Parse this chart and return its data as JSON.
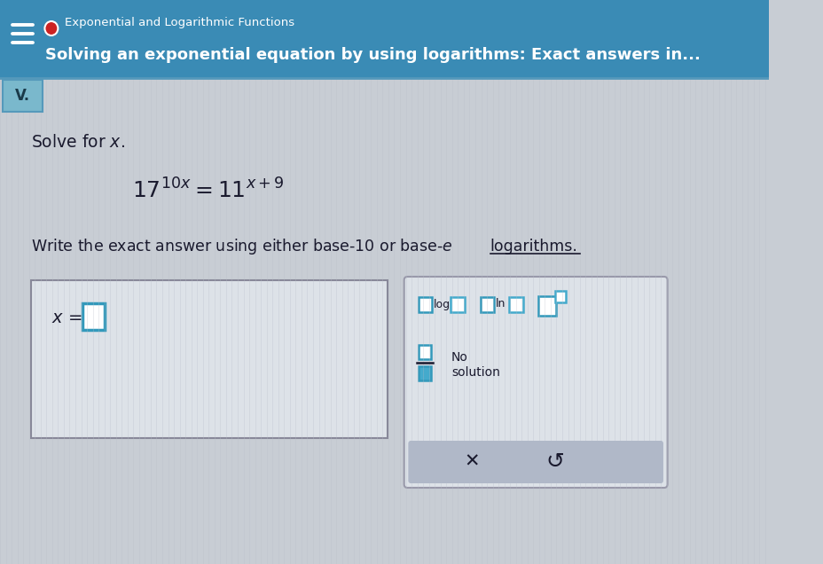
{
  "header_bg": "#3a8bb5",
  "header_text1": "Exponential and Logarithmic Functions",
  "header_text2": "Solving an exponential equation by using logarithms: Exact answers in...",
  "header_text1_color": "#ffffff",
  "header_text2_color": "#ffffff",
  "header_dot_color": "#cc2222",
  "body_bg": "#c8cdd4",
  "panel_bg": "#dde2e8",
  "v_label": "V.",
  "v_bg": "#7ab8cc",
  "solve_text": "Solve for $x$.",
  "text_dark": "#1a1a2e",
  "text_med": "#333344",
  "cyan_box": "#3399bb",
  "teal_box": "#44aacc",
  "answer_box_bg": "#dde2e8",
  "button_panel_bg": "#dde2e8",
  "btn_bottom_bg": "#b0b8c8",
  "white": "#ffffff",
  "border_color": "#888899"
}
